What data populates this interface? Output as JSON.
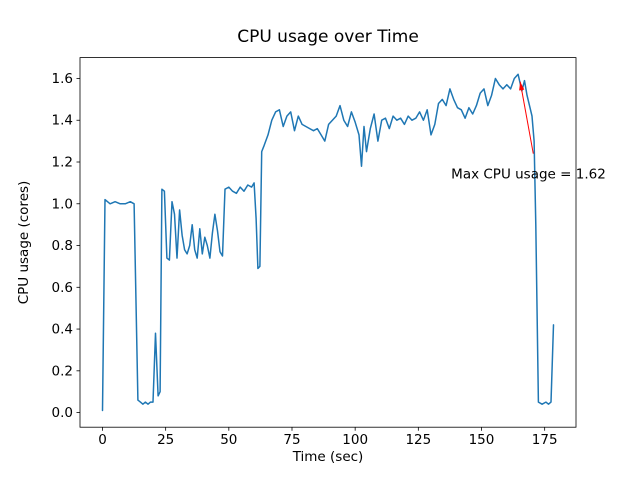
{
  "figure": {
    "background": "#ffffff"
  },
  "chart_data": {
    "type": "line",
    "title": "CPU usage over Time",
    "xlabel": "Time (sec)",
    "ylabel": "CPU usage (cores)",
    "legend": "none",
    "grid": false,
    "line_color": "#1f77b4",
    "xlim": [
      -8.9,
      187.4
    ],
    "ylim": [
      -0.07,
      1.7
    ],
    "xticks": [
      0,
      25,
      50,
      75,
      100,
      125,
      150,
      175
    ],
    "yticks": [
      0.0,
      0.2,
      0.4,
      0.6,
      0.8,
      1.0,
      1.2,
      1.4,
      1.6
    ],
    "x": [
      0,
      1,
      3,
      5,
      7,
      9,
      11,
      12.5,
      14,
      15,
      16,
      17,
      18,
      19,
      20,
      21,
      22,
      22.8,
      23.5,
      24.5,
      25.5,
      26.5,
      27.5,
      28.5,
      29.5,
      30.5,
      31.5,
      32.5,
      33.5,
      34.5,
      35.5,
      36.5,
      37.5,
      38.5,
      39.5,
      40.5,
      41.5,
      42.5,
      43.5,
      44.5,
      45.5,
      46.5,
      47.5,
      48.5,
      50,
      51.5,
      53,
      54.5,
      56,
      57.5,
      59,
      60,
      60.8,
      61.5,
      62.3,
      63,
      64,
      65.5,
      67,
      68.5,
      70,
      71.5,
      73,
      74.5,
      76,
      77.5,
      79,
      80.5,
      82,
      83.5,
      85,
      86.5,
      88,
      89.5,
      91,
      92.5,
      94,
      95.5,
      97,
      98.5,
      100,
      101.5,
      102.5,
      103.5,
      104.5,
      106,
      107.5,
      109,
      110.5,
      112,
      113.5,
      115,
      116.5,
      118,
      119.5,
      121,
      122.5,
      124,
      125.5,
      127,
      128.5,
      130,
      131.5,
      133,
      134.5,
      136,
      137.5,
      139,
      140.5,
      142,
      143.5,
      145,
      146.5,
      148,
      149.5,
      151,
      152.5,
      154,
      155.5,
      157,
      158.5,
      160,
      161.5,
      163,
      164.5,
      166,
      167,
      168,
      169,
      170,
      170.8,
      171.5,
      172.5,
      174,
      175.5,
      176.5,
      177.5,
      178.5
    ],
    "y": [
      0.01,
      1.02,
      1.0,
      1.01,
      1.0,
      1.0,
      1.01,
      1.0,
      0.06,
      0.05,
      0.04,
      0.05,
      0.04,
      0.05,
      0.05,
      0.38,
      0.08,
      0.1,
      1.07,
      1.06,
      0.74,
      0.73,
      1.01,
      0.95,
      0.74,
      0.97,
      0.85,
      0.78,
      0.76,
      0.8,
      0.9,
      0.78,
      0.74,
      0.88,
      0.76,
      0.84,
      0.8,
      0.74,
      0.86,
      0.95,
      0.87,
      0.77,
      0.75,
      1.07,
      1.08,
      1.06,
      1.05,
      1.08,
      1.06,
      1.09,
      1.08,
      1.1,
      0.93,
      0.69,
      0.7,
      1.25,
      1.28,
      1.33,
      1.4,
      1.44,
      1.45,
      1.37,
      1.42,
      1.44,
      1.35,
      1.42,
      1.38,
      1.37,
      1.36,
      1.35,
      1.36,
      1.33,
      1.3,
      1.38,
      1.4,
      1.42,
      1.47,
      1.4,
      1.37,
      1.44,
      1.39,
      1.33,
      1.18,
      1.37,
      1.25,
      1.36,
      1.43,
      1.3,
      1.4,
      1.41,
      1.36,
      1.42,
      1.4,
      1.41,
      1.38,
      1.42,
      1.4,
      1.41,
      1.44,
      1.4,
      1.45,
      1.33,
      1.38,
      1.48,
      1.5,
      1.47,
      1.55,
      1.5,
      1.46,
      1.45,
      1.41,
      1.46,
      1.43,
      1.47,
      1.53,
      1.55,
      1.47,
      1.52,
      1.6,
      1.57,
      1.55,
      1.57,
      1.55,
      1.6,
      1.62,
      1.54,
      1.59,
      1.52,
      1.47,
      1.42,
      1.3,
      0.9,
      0.05,
      0.04,
      0.05,
      0.04,
      0.05,
      0.42
    ],
    "annotation": {
      "text": "Max CPU usage = 1.62",
      "color": "#ff0000",
      "max_value": 1.62,
      "xy": [
        165.3,
        1.585
      ],
      "xytext": [
        138,
        1.12
      ],
      "arrow_tail": [
        170.5,
        1.24
      ]
    }
  }
}
